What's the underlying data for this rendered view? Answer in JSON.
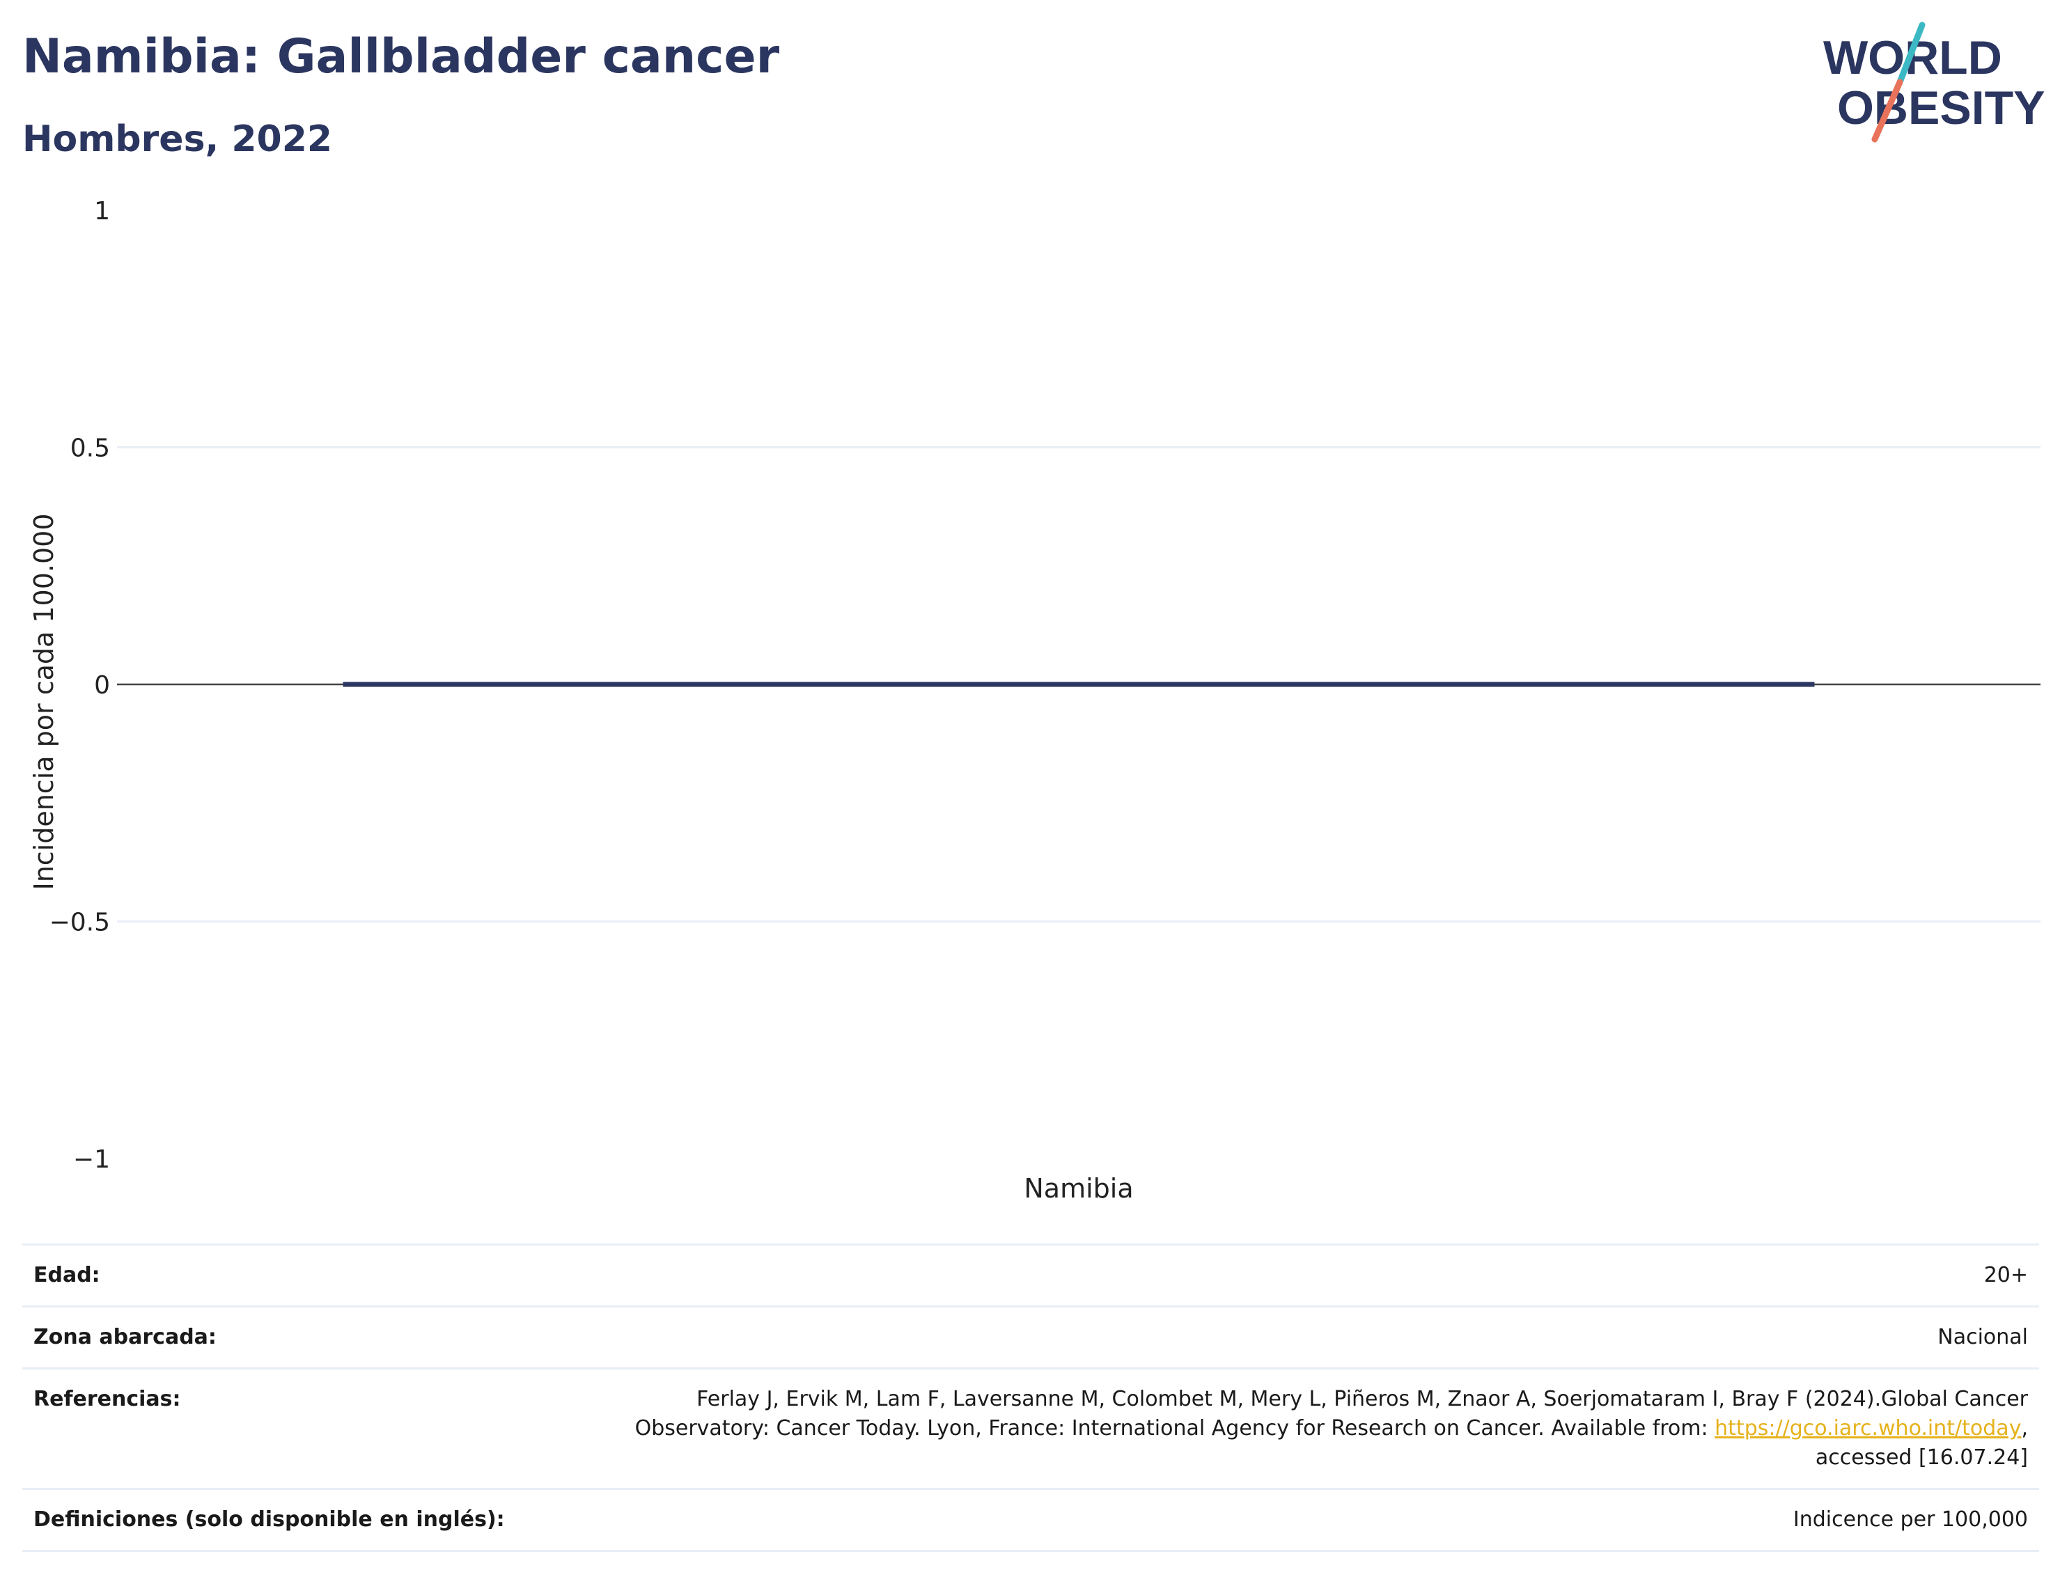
{
  "header": {
    "title": "Namibia: Gallbladder cancer",
    "subtitle": "Hombres, 2022"
  },
  "logo": {
    "line1": "WORLD",
    "line2": "OBESITY",
    "colors": {
      "text": "#2b3660",
      "slash_top": "#3bb8c3",
      "slash_bottom": "#e8735a"
    }
  },
  "chart_data": {
    "type": "bar",
    "categories": [
      "Namibia"
    ],
    "series": [
      {
        "values": [
          0
        ]
      }
    ],
    "ylabel": "Incidencia por cada 100.000",
    "xlabel": "",
    "ylim": [
      -1,
      1
    ],
    "yticks": [
      1,
      0.5,
      0,
      -0.5,
      -1
    ],
    "ytick_labels": [
      "1",
      "0.5",
      "0",
      "−0.5",
      "−1"
    ],
    "grid": true,
    "bar_color": "#2b3660"
  },
  "info": {
    "rows": [
      {
        "label": "Edad:",
        "value": "20+"
      },
      {
        "label": "Zona abarcada:",
        "value": "Nacional"
      },
      {
        "label": "Referencias:",
        "value_pre": "Ferlay J, Ervik M, Lam F, Laversanne M, Colombet M, Mery L, Piñeros M, Znaor A, Soerjomataram I, Bray F (2024).Global Cancer Observatory: Cancer Today. Lyon, France: International Agency for Research on Cancer. Available from: ",
        "link": "https://gco.iarc.who.int/today",
        "value_post": ", accessed [16.07.24]"
      },
      {
        "label": "Definiciones (solo disponible en inglés):",
        "value": "Indicence per 100,000"
      }
    ]
  }
}
